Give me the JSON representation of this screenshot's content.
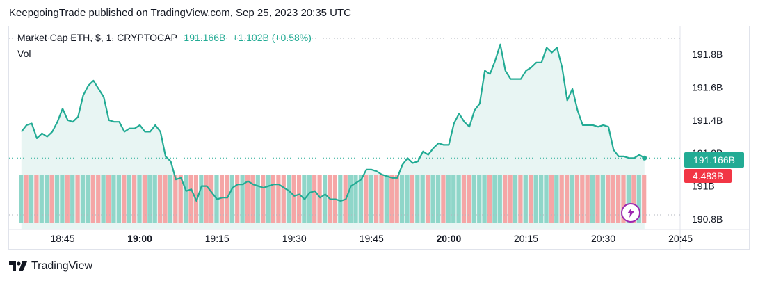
{
  "publish_line": "KeepgoingTrade published on TradingView.com, Sep 25, 2023 20:35 UTC",
  "legend": {
    "symbol": "Market Cap ETH, $, 1, CRYPTOCAP",
    "last": "191.166B",
    "change": "+1.102B (+0.58%)"
  },
  "vol_label": "Vol",
  "price_tag": "191.166B",
  "vol_tag": "4.483B",
  "footer_brand": "TradingView",
  "colors": {
    "line": "#22ab94",
    "fill": "#e6f4f2",
    "up": "#22ab94",
    "down": "#f23645"
  },
  "icons": {
    "brand": "tradingview-logo-icon",
    "alert": "lightning-bolt-icon"
  },
  "chart_data": {
    "type": "area",
    "title": "",
    "xlabel": "",
    "ylabel": "",
    "x_range": [
      "18:37",
      "20:40"
    ],
    "ylim": [
      190.8,
      191.9
    ],
    "y_ticks": [
      "191.8B",
      "191.6B",
      "191.4B",
      "191.2B",
      "191B",
      "190.8B"
    ],
    "y_tick_values": [
      191.8,
      191.6,
      191.4,
      191.2,
      191.0,
      190.8
    ],
    "x_ticks": [
      {
        "label": "18:45",
        "min": 465,
        "bold": false
      },
      {
        "label": "19:00",
        "min": 480,
        "bold": true
      },
      {
        "label": "19:15",
        "min": 495,
        "bold": false
      },
      {
        "label": "19:30",
        "min": 510,
        "bold": false
      },
      {
        "label": "19:45",
        "min": 525,
        "bold": false
      },
      {
        "label": "20:00",
        "min": 540,
        "bold": true
      },
      {
        "label": "20:15",
        "min": 555,
        "bold": false
      },
      {
        "label": "20:30",
        "min": 570,
        "bold": false
      },
      {
        "label": "20:45",
        "min": 585,
        "bold": false
      }
    ],
    "start_min": 457,
    "values": [
      191.33,
      191.37,
      191.38,
      191.29,
      191.32,
      191.3,
      191.33,
      191.39,
      191.47,
      191.4,
      191.39,
      191.42,
      191.55,
      191.61,
      191.64,
      191.59,
      191.54,
      191.4,
      191.39,
      191.39,
      191.33,
      191.35,
      191.35,
      191.37,
      191.33,
      191.33,
      191.37,
      191.33,
      191.18,
      191.15,
      191.04,
      191.05,
      190.97,
      190.98,
      190.91,
      191.0,
      191.0,
      190.96,
      190.92,
      190.93,
      190.93,
      190.99,
      191.01,
      191.01,
      191.03,
      191.01,
      191.0,
      190.99,
      191.0,
      191.01,
      191.01,
      190.99,
      190.97,
      190.94,
      190.95,
      190.92,
      190.96,
      190.97,
      190.93,
      190.95,
      190.92,
      190.92,
      190.91,
      190.92,
      191.0,
      191.02,
      191.04,
      191.1,
      191.1,
      191.09,
      191.07,
      191.06,
      191.05,
      191.05,
      191.13,
      191.17,
      191.14,
      191.15,
      191.21,
      191.19,
      191.23,
      191.26,
      191.25,
      191.25,
      191.38,
      191.44,
      191.39,
      191.36,
      191.46,
      191.5,
      191.7,
      191.68,
      191.76,
      191.86,
      191.7,
      191.65,
      191.65,
      191.65,
      191.7,
      191.72,
      191.75,
      191.75,
      191.84,
      191.81,
      191.84,
      191.72,
      191.52,
      191.59,
      191.46,
      191.37,
      191.37,
      191.37,
      191.36,
      191.37,
      191.36,
      191.22,
      191.18,
      191.18,
      191.17,
      191.17,
      191.19,
      191.17
    ],
    "volume_up_pattern": [
      1,
      0,
      1,
      0,
      1,
      1,
      0,
      1,
      1,
      0,
      1,
      0,
      1,
      1,
      0,
      0,
      1,
      0,
      1,
      1,
      0,
      1,
      0,
      1,
      0,
      1,
      1,
      0,
      0,
      1,
      0,
      0,
      1,
      0,
      0,
      1,
      0,
      0,
      1,
      0,
      0,
      1,
      0,
      1,
      0,
      0,
      1,
      0,
      1,
      0,
      0,
      0,
      1,
      0,
      0,
      1,
      1,
      0,
      0,
      1,
      0,
      0,
      1,
      0,
      1,
      1,
      1,
      0,
      1,
      0,
      0,
      1,
      0,
      0,
      1,
      1,
      0,
      1,
      1,
      0,
      1,
      1,
      0,
      1,
      1,
      1,
      0,
      0,
      1,
      1,
      1,
      0,
      1,
      1,
      0,
      0,
      1,
      0,
      1,
      0,
      1,
      1,
      1,
      0,
      1,
      0,
      0,
      1,
      0,
      0,
      0,
      1,
      0,
      1,
      0,
      0,
      0,
      0,
      1,
      0,
      1,
      0
    ]
  }
}
